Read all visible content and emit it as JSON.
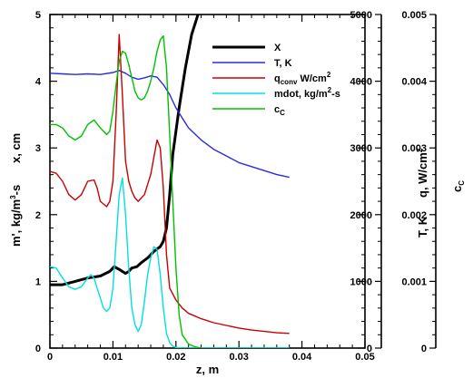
{
  "chart_data": {
    "type": "line",
    "xlabel": "z, m",
    "xlim": [
      0,
      0.05
    ],
    "x_ticks": [
      "0",
      "0.01",
      "0.02",
      "0.03",
      "0.04",
      "0.05"
    ],
    "left_axis": {
      "label_parts": [
        "m', kg/m",
        "3",
        "-s",
        "x, cm"
      ],
      "lim": [
        0,
        5
      ],
      "ticks": [
        "0",
        "1",
        "2",
        "3",
        "4",
        "5"
      ]
    },
    "right_axes": [
      {
        "label_parts": [
          "T, K",
          "q, W/cm",
          "2"
        ],
        "lim": [
          0,
          5000
        ],
        "ticks": [
          "0",
          "1000",
          "2000",
          "3000",
          "4000",
          "5000"
        ]
      },
      {
        "label_parts": [
          "c",
          "C"
        ],
        "lim": [
          0,
          0.005
        ],
        "ticks": [
          "0",
          "0.001",
          "0.002",
          "0.003",
          "0.004",
          "0.005"
        ]
      }
    ],
    "series": [
      {
        "name": "X",
        "legend_parts": [
          "X"
        ],
        "color": "#000000",
        "axis": "left",
        "width": 3,
        "x": [
          0,
          0.002,
          0.004,
          0.006,
          0.008,
          0.0095,
          0.0102,
          0.011,
          0.012,
          0.0125,
          0.013,
          0.0138,
          0.0145,
          0.0155,
          0.0165,
          0.0175,
          0.018,
          0.0185,
          0.019,
          0.0195,
          0.0205,
          0.0215,
          0.0225,
          0.0235
        ],
        "y": [
          0.95,
          0.95,
          1.0,
          1.05,
          1.08,
          1.15,
          1.22,
          1.18,
          1.12,
          1.15,
          1.2,
          1.22,
          1.28,
          1.35,
          1.45,
          1.52,
          1.6,
          1.8,
          2.3,
          2.9,
          3.6,
          4.2,
          4.7,
          5.0
        ]
      },
      {
        "name": "T, K",
        "legend_parts": [
          "T, K"
        ],
        "color": "#2a2ae0",
        "axis": "left",
        "width": 1.4,
        "x": [
          0,
          0.002,
          0.004,
          0.006,
          0.008,
          0.01,
          0.011,
          0.012,
          0.013,
          0.014,
          0.015,
          0.016,
          0.017,
          0.018,
          0.019,
          0.02,
          0.021,
          0.022,
          0.024,
          0.026,
          0.028,
          0.03,
          0.032,
          0.034,
          0.036,
          0.038
        ],
        "y": [
          4.12,
          4.11,
          4.1,
          4.11,
          4.1,
          4.13,
          4.16,
          4.12,
          4.06,
          4.03,
          4.05,
          4.08,
          4.06,
          3.95,
          3.8,
          3.6,
          3.45,
          3.3,
          3.12,
          2.98,
          2.88,
          2.78,
          2.72,
          2.66,
          2.6,
          2.56
        ]
      },
      {
        "name": "q_conv W/cm2",
        "legend_parts": [
          "q",
          "conv",
          " W/cm",
          "2"
        ],
        "color": "#c80000",
        "axis": "left",
        "width": 1.4,
        "x": [
          0,
          0.001,
          0.002,
          0.003,
          0.004,
          0.005,
          0.006,
          0.007,
          0.0075,
          0.008,
          0.009,
          0.0095,
          0.01,
          0.0105,
          0.011,
          0.0115,
          0.012,
          0.0125,
          0.013,
          0.0135,
          0.014,
          0.015,
          0.016,
          0.017,
          0.0175,
          0.018,
          0.0185,
          0.019,
          0.02,
          0.021,
          0.022,
          0.024,
          0.026,
          0.028,
          0.03,
          0.032,
          0.034,
          0.036,
          0.038
        ],
        "y": [
          2.65,
          2.62,
          2.5,
          2.3,
          2.22,
          2.3,
          2.5,
          2.52,
          2.4,
          2.2,
          2.12,
          2.2,
          2.5,
          3.5,
          4.7,
          3.8,
          2.8,
          2.5,
          2.35,
          2.25,
          2.2,
          2.3,
          2.6,
          3.12,
          3.0,
          2.4,
          1.4,
          0.9,
          0.72,
          0.6,
          0.52,
          0.44,
          0.38,
          0.34,
          0.3,
          0.27,
          0.25,
          0.23,
          0.22
        ]
      },
      {
        "name": "mdot, kg/m2-s",
        "legend_parts": [
          "mdot, kg/m",
          "2",
          "-s"
        ],
        "color": "#00e0e0",
        "axis": "left",
        "width": 1.4,
        "x": [
          0,
          0.001,
          0.002,
          0.003,
          0.004,
          0.005,
          0.006,
          0.0065,
          0.007,
          0.0075,
          0.008,
          0.0085,
          0.009,
          0.0095,
          0.01,
          0.0105,
          0.011,
          0.0115,
          0.012,
          0.0125,
          0.013,
          0.0135,
          0.014,
          0.0145,
          0.015,
          0.0155,
          0.016,
          0.0165,
          0.017,
          0.0175,
          0.018,
          0.0185,
          0.019,
          0.0195,
          0.02,
          0.021,
          0.022,
          0.025,
          0.03,
          0.035,
          0.038
        ],
        "y": [
          1.22,
          1.2,
          1.05,
          0.92,
          0.88,
          0.92,
          1.05,
          1.1,
          1.05,
          0.9,
          0.75,
          0.6,
          0.55,
          0.6,
          0.9,
          1.6,
          2.3,
          2.55,
          2.0,
          1.2,
          0.6,
          0.35,
          0.25,
          0.35,
          0.7,
          1.1,
          1.35,
          1.52,
          1.48,
          1.1,
          0.6,
          0.22,
          0.08,
          0.03,
          0.01,
          0.0,
          0.0,
          0.0,
          0.0,
          0.0,
          0.0
        ]
      },
      {
        "name": "c_C",
        "legend_parts": [
          "c",
          "C"
        ],
        "color": "#00c000",
        "axis": "left",
        "width": 1.4,
        "x": [
          0,
          0.001,
          0.002,
          0.003,
          0.004,
          0.005,
          0.006,
          0.007,
          0.008,
          0.009,
          0.0095,
          0.01,
          0.0105,
          0.011,
          0.0115,
          0.012,
          0.0125,
          0.013,
          0.0135,
          0.014,
          0.0145,
          0.015,
          0.0155,
          0.016,
          0.0165,
          0.017,
          0.0175,
          0.018,
          0.0185,
          0.019,
          0.0195,
          0.02,
          0.0205,
          0.021,
          0.022,
          0.023,
          0.024
        ],
        "y": [
          3.35,
          3.35,
          3.3,
          3.18,
          3.12,
          3.18,
          3.35,
          3.42,
          3.3,
          3.2,
          3.25,
          3.55,
          3.95,
          4.3,
          4.45,
          4.42,
          4.25,
          4.05,
          3.85,
          3.75,
          3.72,
          3.75,
          3.85,
          4.0,
          4.2,
          4.45,
          4.62,
          4.68,
          4.2,
          3.2,
          2.2,
          1.2,
          0.5,
          0.2,
          0.06,
          0.02,
          0.0
        ]
      }
    ]
  }
}
